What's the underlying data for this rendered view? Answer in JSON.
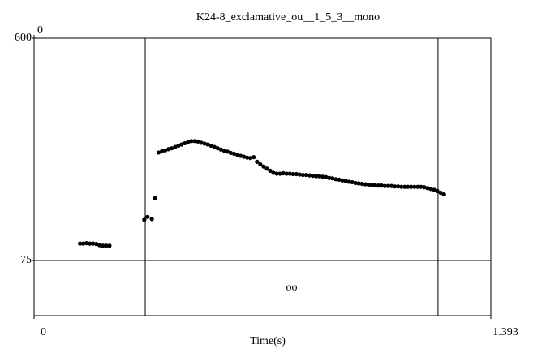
{
  "chart_data": {
    "type": "scatter",
    "title": "K24-8_exclamative_ou__1_5_3__mono",
    "xlabel": "Time(s)",
    "xlim": [
      0,
      1.393
    ],
    "xticks": [
      0,
      1.393
    ],
    "xticks_top": [
      0
    ],
    "ylim": [
      75,
      600
    ],
    "yticks": [
      75,
      600
    ],
    "boundaries": [
      0.339,
      1.232
    ],
    "tier_label": "oo",
    "color": "#000000",
    "x": [
      0.14,
      0.15,
      0.16,
      0.17,
      0.18,
      0.19,
      0.2,
      0.21,
      0.22,
      0.23,
      0.336,
      0.346,
      0.359,
      0.369,
      0.38,
      0.39,
      0.4,
      0.41,
      0.42,
      0.43,
      0.44,
      0.45,
      0.46,
      0.47,
      0.48,
      0.49,
      0.5,
      0.51,
      0.52,
      0.53,
      0.54,
      0.55,
      0.56,
      0.57,
      0.58,
      0.59,
      0.6,
      0.61,
      0.62,
      0.63,
      0.64,
      0.65,
      0.66,
      0.67,
      0.68,
      0.69,
      0.7,
      0.71,
      0.72,
      0.73,
      0.74,
      0.75,
      0.76,
      0.77,
      0.78,
      0.79,
      0.8,
      0.81,
      0.82,
      0.83,
      0.84,
      0.85,
      0.86,
      0.87,
      0.88,
      0.89,
      0.9,
      0.91,
      0.92,
      0.93,
      0.94,
      0.95,
      0.96,
      0.97,
      0.98,
      0.99,
      1.0,
      1.01,
      1.02,
      1.03,
      1.04,
      1.05,
      1.06,
      1.07,
      1.08,
      1.09,
      1.1,
      1.11,
      1.12,
      1.13,
      1.14,
      1.15,
      1.16,
      1.17,
      1.18,
      1.19,
      1.2,
      1.21,
      1.22,
      1.23,
      1.24,
      1.25
    ],
    "values": [
      115,
      115,
      116,
      115,
      115,
      114,
      111,
      110,
      110,
      110,
      171,
      178,
      173,
      222,
      330,
      333,
      335,
      338,
      340,
      343,
      346,
      349,
      352,
      355,
      357,
      357,
      356,
      353,
      351,
      349,
      346,
      343,
      340,
      337,
      334,
      332,
      329,
      327,
      325,
      322,
      320,
      318,
      317,
      319,
      308,
      302,
      297,
      292,
      287,
      282,
      280,
      280,
      281,
      280,
      280,
      279,
      279,
      278,
      277,
      277,
      276,
      275,
      274,
      274,
      273,
      272,
      270,
      269,
      267,
      266,
      264,
      263,
      261,
      260,
      258,
      257,
      256,
      255,
      254,
      253,
      253,
      252,
      252,
      251,
      251,
      251,
      250,
      250,
      249,
      249,
      249,
      249,
      249,
      249,
      249,
      248,
      246,
      244,
      242,
      239,
      235,
      231
    ]
  }
}
